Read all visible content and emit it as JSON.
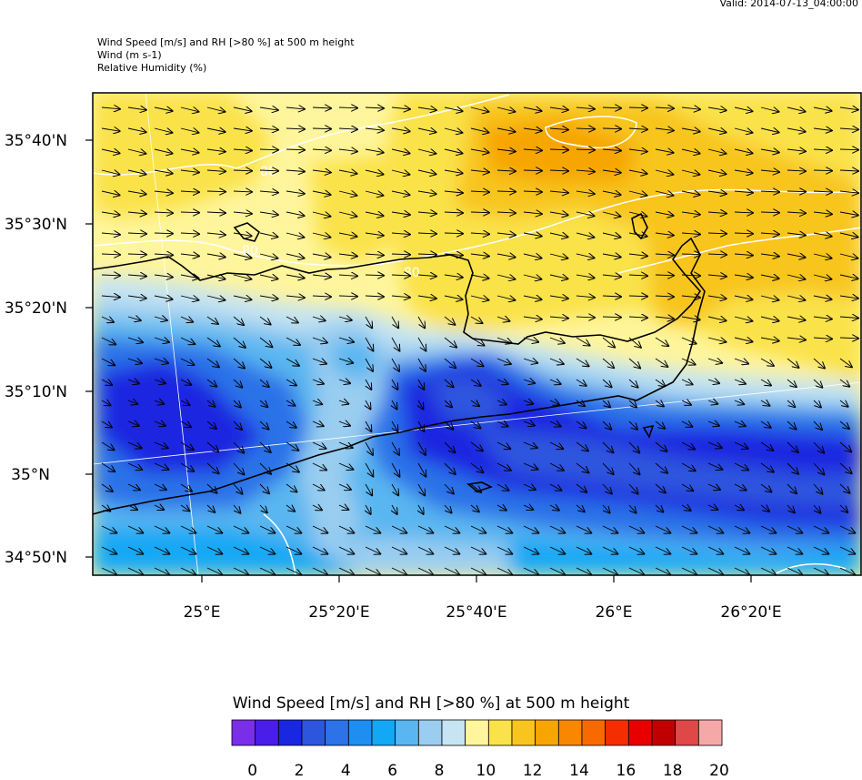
{
  "header": {
    "valid": "Valid: 2014-07-13_04:00:00",
    "title_lines": [
      "Wind Speed [m/s] and RH [>80 %] at 500 m height",
      "Wind   (m s-1)",
      "Relative Humidity   (%)"
    ]
  },
  "map": {
    "lat_labels": [
      "35°40'N",
      "35°30'N",
      "35°20'N",
      "35°10'N",
      "35°N",
      "34°50'N"
    ],
    "lon_labels": [
      "25°E",
      "25°20'E",
      "25°40'E",
      "26°E",
      "26°20'E"
    ],
    "contour_labels": [
      "80",
      "80",
      "80"
    ],
    "region": "Crete",
    "features": [
      "coastline",
      "wind-vectors",
      "rh-contours",
      "wind-speed-fill"
    ]
  },
  "colorbar": {
    "title": "Wind Speed [m/s] and RH [>80 %] at 500 m height",
    "colors": [
      "#7a2ee8",
      "#4a1de8",
      "#1a27e0",
      "#2e55de",
      "#2c72e8",
      "#1e8ef0",
      "#12a8f5",
      "#5ab6f0",
      "#9acdf0",
      "#c6e4f2",
      "#fff59c",
      "#fae24a",
      "#f8c51e",
      "#f7a500",
      "#f78800",
      "#f76a00",
      "#f42e00",
      "#e80000",
      "#c00000",
      "#e04848",
      "#f6a8a8"
    ],
    "tick_labels": [
      "0",
      "2",
      "4",
      "6",
      "8",
      "10",
      "12",
      "14",
      "16",
      "18",
      "20"
    ],
    "units": "m/s"
  }
}
